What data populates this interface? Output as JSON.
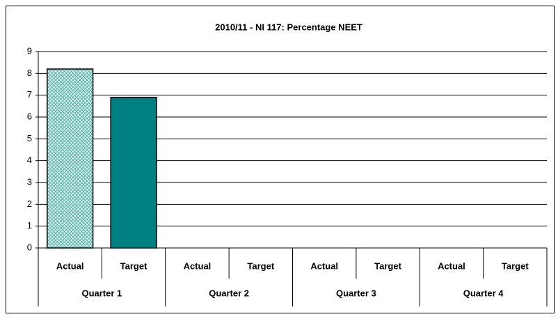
{
  "chart_data": {
    "type": "bar",
    "title": "2010/11 - NI 117: Percentage NEET",
    "categories": [
      "Actual",
      "Target",
      "Actual",
      "Target",
      "Actual",
      "Target",
      "Actual",
      "Target"
    ],
    "groups": [
      "Quarter 1",
      "Quarter 2",
      "Quarter 3",
      "Quarter 4"
    ],
    "values": [
      8.2,
      6.9,
      null,
      null,
      null,
      null,
      null,
      null
    ],
    "bar_colors": [
      "#a8dcd8",
      "#008080"
    ],
    "hatched": [
      true,
      false
    ],
    "ylim": [
      0,
      9
    ],
    "yticks": [
      0,
      1,
      2,
      3,
      4,
      5,
      6,
      7,
      8,
      9
    ],
    "grid": true
  }
}
